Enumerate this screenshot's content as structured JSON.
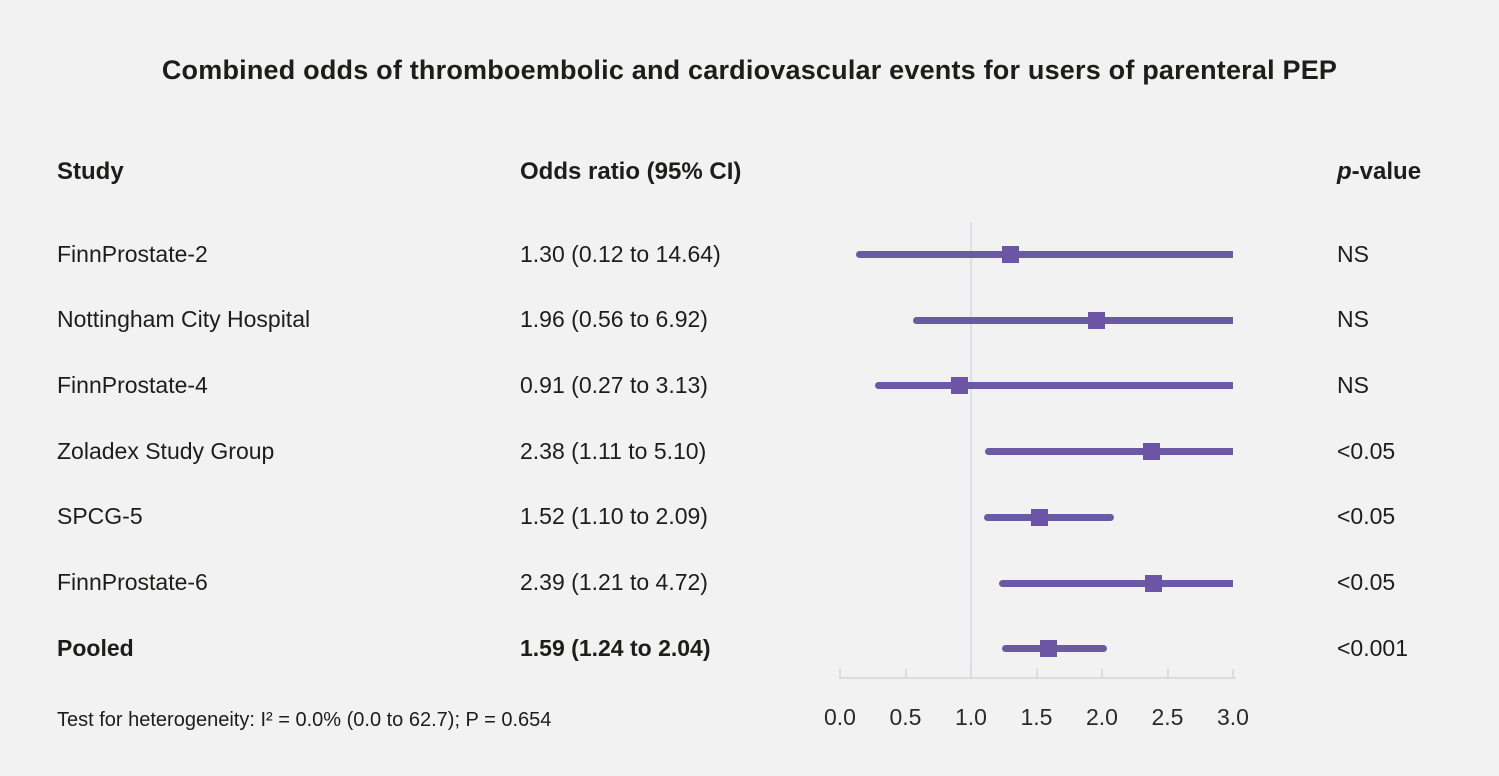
{
  "title": "Combined odds of thromboembolic and cardiovascular events for users of parenteral PEP",
  "table": {
    "headers": {
      "study": "Study",
      "odds_ratio": "Odds ratio (95% CI)",
      "p_value": "p-value"
    }
  },
  "chart_data": {
    "type": "forest",
    "title": "Combined odds of thromboembolic and cardiovascular events for users of parenteral PEP",
    "xlabel": "",
    "xlim": [
      0.0,
      3.0
    ],
    "x_tick_labels": [
      "0.0",
      "0.5",
      "1.0",
      "1.5",
      "2.0",
      "2.5",
      "3.0"
    ],
    "x_tick_values": [
      0.0,
      0.5,
      1.0,
      1.5,
      2.0,
      2.5,
      3.0
    ],
    "reference_line": 1.0,
    "grid": false,
    "rows": [
      {
        "study": "FinnProstate-2",
        "or": 1.3,
        "ci_low": 0.12,
        "ci_high": 14.64,
        "or_label": "1.30 (0.12 to 14.64)",
        "p": "NS",
        "bold": false
      },
      {
        "study": "Nottingham City Hospital",
        "or": 1.96,
        "ci_low": 0.56,
        "ci_high": 6.92,
        "or_label": "1.96 (0.56 to 6.92)",
        "p": "NS",
        "bold": false
      },
      {
        "study": "FinnProstate-4",
        "or": 0.91,
        "ci_low": 0.27,
        "ci_high": 3.13,
        "or_label": "0.91 (0.27 to 3.13)",
        "p": "NS",
        "bold": false
      },
      {
        "study": "Zoladex Study Group",
        "or": 2.38,
        "ci_low": 1.11,
        "ci_high": 5.1,
        "or_label": "2.38 (1.11 to 5.10)",
        "p": "<0.05",
        "bold": false
      },
      {
        "study": "SPCG-5",
        "or": 1.52,
        "ci_low": 1.1,
        "ci_high": 2.09,
        "or_label": "1.52 (1.10 to 2.09)",
        "p": "<0.05",
        "bold": false
      },
      {
        "study": "FinnProstate-6",
        "or": 2.39,
        "ci_low": 1.21,
        "ci_high": 4.72,
        "or_label": "2.39 (1.21 to 4.72)",
        "p": "<0.05",
        "bold": false
      },
      {
        "study": "Pooled",
        "or": 1.59,
        "ci_low": 1.24,
        "ci_high": 2.04,
        "or_label": "1.59 (1.24 to 2.04)",
        "p": "<0.001",
        "bold": true
      }
    ]
  },
  "footnote": "Test for heterogeneity: I² = 0.0% (0.0 to 62.7); P = 0.654",
  "colors": {
    "background": "#f2f2f2",
    "bar": "#6a5aa6",
    "marker": "#6c55a5",
    "axis": "#d8dde3",
    "reference_line": "#dce0e6",
    "text": "#1d1d1b"
  }
}
